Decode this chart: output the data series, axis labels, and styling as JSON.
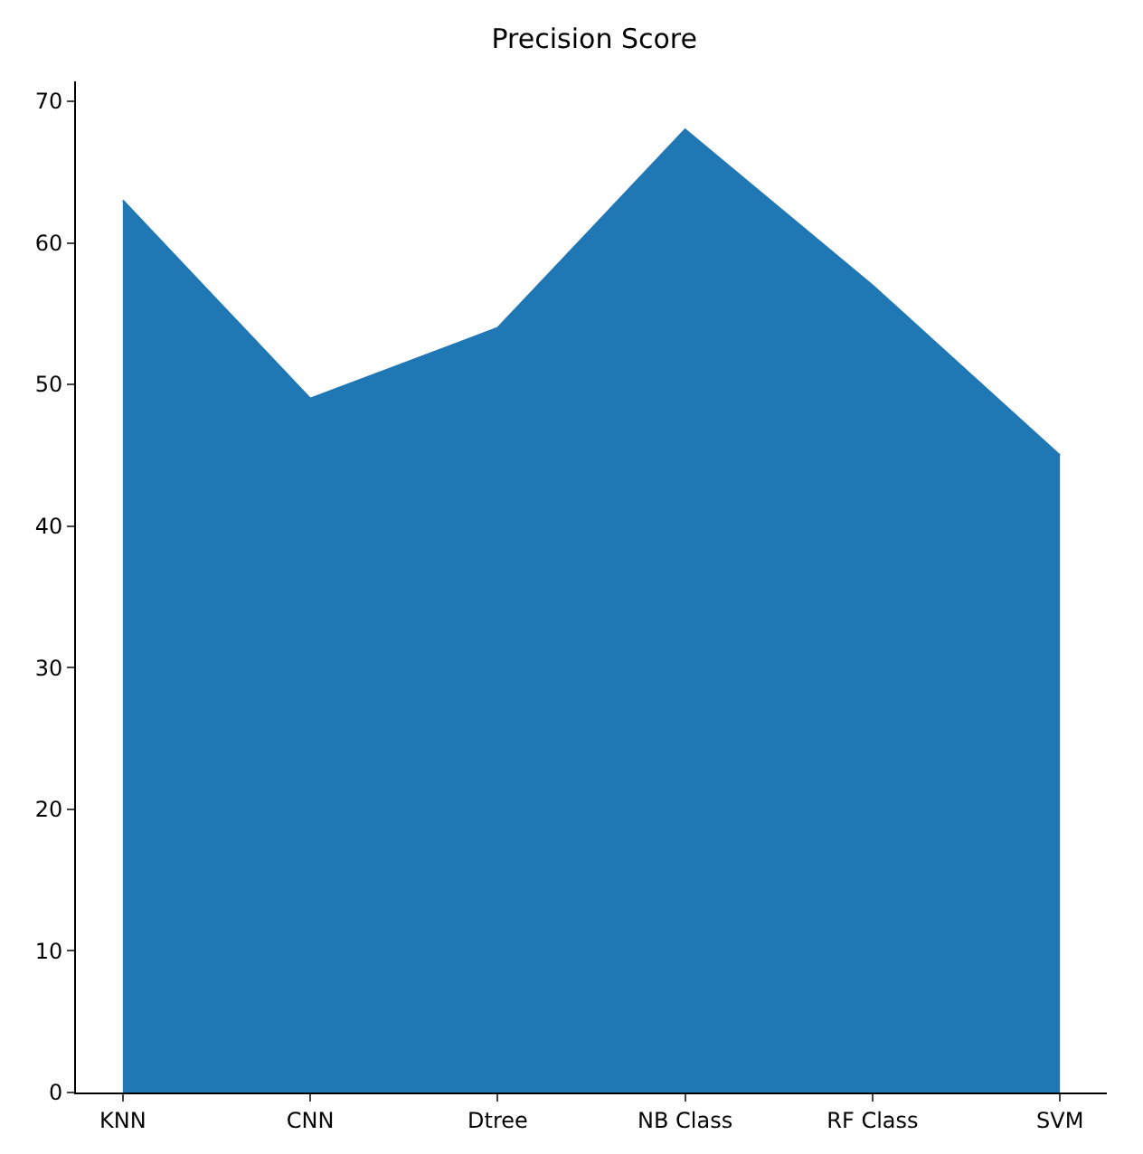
{
  "chart_data": {
    "type": "area",
    "title": "Precision Score",
    "categories": [
      "KNN",
      "CNN",
      "Dtree",
      "NB Class",
      "RF Class",
      "SVM"
    ],
    "series": [
      {
        "color": "#1f77b4",
        "values": [
          63,
          49,
          54,
          68,
          57,
          45
        ]
      }
    ],
    "ylim": [
      0,
      71.4
    ],
    "yticks": [
      0,
      10,
      20,
      30,
      40,
      50,
      60,
      70
    ],
    "grid": false
  }
}
